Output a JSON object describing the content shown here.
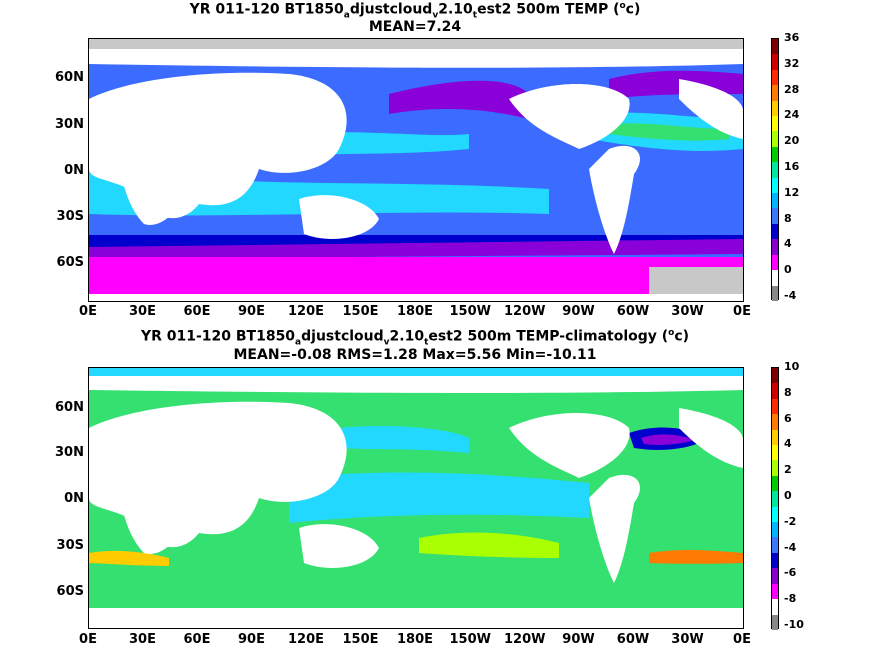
{
  "maps": [
    {
      "title_parts": [
        "YR 011-120 BT1850",
        "a",
        "djustcloud",
        "v",
        "2.10",
        "t",
        "est2 500m TEMP (",
        "o",
        "c)"
      ],
      "subtitle": "MEAN=7.24",
      "lat_labels": [
        "60N",
        "30N",
        "0N",
        "30S",
        "60S"
      ],
      "lon_labels": [
        "0E",
        "30E",
        "60E",
        "90E",
        "120E",
        "150E",
        "180E",
        "150W",
        "120W",
        "90W",
        "60W",
        "30W",
        "0E"
      ],
      "colorbar_labels": [
        "36",
        "32",
        "28",
        "24",
        "20",
        "16",
        "12",
        "8",
        "4",
        "0",
        "-4"
      ],
      "colorbar_colors": [
        "#7f0000",
        "#cc0000",
        "#ff2a00",
        "#ff7a00",
        "#ffcc00",
        "#ffff00",
        "#aaff00",
        "#00cc00",
        "#00e8a0",
        "#00ffff",
        "#00b4ff",
        "#3c78ff",
        "#0000cc",
        "#8800cc",
        "#ff00ff",
        "#ffffff",
        "#888888"
      ]
    },
    {
      "title_parts": [
        "YR 011-120 BT1850",
        "a",
        "djustcloud",
        "v",
        "2.10",
        "t",
        "est2 500m TEMP-climatology (",
        "o",
        "c)"
      ],
      "subtitle": "MEAN=-0.08   RMS=1.28   Max=5.56   Min=-10.11",
      "lat_labels": [
        "60N",
        "30N",
        "0N",
        "30S",
        "60S"
      ],
      "lon_labels": [
        "0E",
        "30E",
        "60E",
        "90E",
        "120E",
        "150E",
        "180E",
        "150W",
        "120W",
        "90W",
        "60W",
        "30W",
        "0E"
      ],
      "colorbar_labels": [
        "10",
        "8",
        "6",
        "4",
        "2",
        "0",
        "-2",
        "-4",
        "-6",
        "-8",
        "-10"
      ],
      "colorbar_colors": [
        "#7f0000",
        "#cc0000",
        "#ff2a00",
        "#ff7a00",
        "#ffcc00",
        "#ffff00",
        "#aaff00",
        "#00cc00",
        "#00e8a0",
        "#00ffff",
        "#00b4ff",
        "#3c78ff",
        "#0000cc",
        "#8800cc",
        "#ff00ff",
        "#ffffff",
        "#888888"
      ]
    }
  ],
  "palette": {
    "ocean_blue": "#3c6cff",
    "ocean_cyan": "#22d8ff",
    "ocean_green": "#33e070",
    "purple": "#8a00d8",
    "magenta": "#ff00ff",
    "land": "#ffffff",
    "ice": "#c8c8c8"
  }
}
